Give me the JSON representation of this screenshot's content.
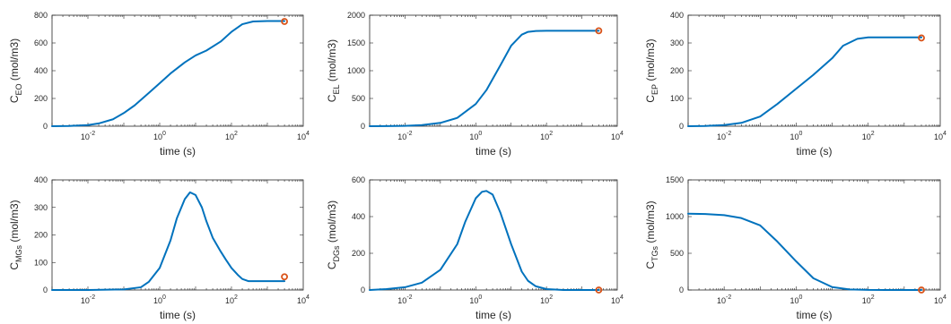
{
  "figure": {
    "line_color": "#0072BD",
    "marker_color": "#D95319"
  },
  "chart_data": [
    {
      "type": "line",
      "xlabel": "time (s)",
      "ylabel": {
        "main": "C",
        "sub": "EO",
        "unit": " (mol/m3)"
      },
      "xscale": "log",
      "xlim": [
        0.001,
        10000
      ],
      "ylim": [
        0,
        800
      ],
      "xticks": [
        0.01,
        1,
        100,
        10000
      ],
      "xtick_labels": [
        {
          "base": "10",
          "exp": "-2"
        },
        {
          "base": "10",
          "exp": "0"
        },
        {
          "base": "10",
          "exp": "2"
        },
        {
          "base": "10",
          "exp": "4"
        }
      ],
      "yticks": [
        0,
        200,
        400,
        600,
        800
      ],
      "ytick_labels": [
        "0",
        "200",
        "400",
        "600",
        "800"
      ],
      "series": [
        {
          "x": [
            0.001,
            0.003,
            0.01,
            0.02,
            0.05,
            0.1,
            0.2,
            0.5,
            1,
            2,
            5,
            10,
            20,
            50,
            100,
            200,
            400,
            1000,
            3000
          ],
          "y": [
            0,
            2,
            8,
            20,
            50,
            95,
            150,
            240,
            310,
            380,
            460,
            510,
            545,
            610,
            680,
            735,
            755,
            758,
            758
          ]
        }
      ],
      "marker": {
        "x": 3000,
        "y": 755
      }
    },
    {
      "type": "line",
      "xlabel": "time (s)",
      "ylabel": {
        "main": "C",
        "sub": "EL",
        "unit": " (mol/m3)"
      },
      "xscale": "log",
      "xlim": [
        0.001,
        10000
      ],
      "ylim": [
        0,
        2000
      ],
      "xticks": [
        0.01,
        1,
        100,
        10000
      ],
      "xtick_labels": [
        {
          "base": "10",
          "exp": "-2"
        },
        {
          "base": "10",
          "exp": "0"
        },
        {
          "base": "10",
          "exp": "2"
        },
        {
          "base": "10",
          "exp": "4"
        }
      ],
      "yticks": [
        0,
        500,
        1000,
        1500,
        2000
      ],
      "ytick_labels": [
        "0",
        "500",
        "1000",
        "1500",
        "2000"
      ],
      "series": [
        {
          "x": [
            0.001,
            0.003,
            0.01,
            0.03,
            0.1,
            0.3,
            1,
            2,
            5,
            10,
            20,
            30,
            50,
            100,
            300,
            1000,
            3000
          ],
          "y": [
            0,
            2,
            6,
            20,
            60,
            150,
            400,
            650,
            1100,
            1450,
            1650,
            1700,
            1715,
            1720,
            1720,
            1720,
            1720
          ]
        }
      ],
      "marker": {
        "x": 3000,
        "y": 1720
      }
    },
    {
      "type": "line",
      "xlabel": "time (s)",
      "ylabel": {
        "main": "C",
        "sub": "EP",
        "unit": " (mol/m3)"
      },
      "xscale": "log",
      "xlim": [
        0.001,
        10000
      ],
      "ylim": [
        0,
        400
      ],
      "xticks": [
        0.01,
        1,
        100,
        10000
      ],
      "xtick_labels": [
        {
          "base": "10",
          "exp": "-2"
        },
        {
          "base": "10",
          "exp": "0"
        },
        {
          "base": "10",
          "exp": "2"
        },
        {
          "base": "10",
          "exp": "4"
        }
      ],
      "yticks": [
        0,
        100,
        200,
        300,
        400
      ],
      "ytick_labels": [
        "0",
        "100",
        "200",
        "300",
        "400"
      ],
      "series": [
        {
          "x": [
            0.001,
            0.003,
            0.01,
            0.03,
            0.1,
            0.3,
            1,
            3,
            10,
            20,
            50,
            100,
            300,
            1000,
            3000
          ],
          "y": [
            0,
            1,
            4,
            12,
            35,
            80,
            135,
            185,
            245,
            290,
            315,
            320,
            320,
            320,
            320
          ]
        }
      ],
      "marker": {
        "x": 3000,
        "y": 318
      }
    },
    {
      "type": "line",
      "xlabel": "time (s)",
      "ylabel": {
        "main": "C",
        "sub": "MGs",
        "unit": " (mol/m3)"
      },
      "xscale": "log",
      "xlim": [
        0.001,
        10000
      ],
      "ylim": [
        0,
        400
      ],
      "xticks": [
        0.01,
        1,
        100,
        10000
      ],
      "xtick_labels": [
        {
          "base": "10",
          "exp": "-2"
        },
        {
          "base": "10",
          "exp": "0"
        },
        {
          "base": "10",
          "exp": "2"
        },
        {
          "base": "10",
          "exp": "4"
        }
      ],
      "yticks": [
        0,
        100,
        200,
        300,
        400
      ],
      "ytick_labels": [
        "0",
        "100",
        "200",
        "300",
        "400"
      ],
      "series": [
        {
          "x": [
            0.001,
            0.01,
            0.1,
            0.3,
            0.5,
            1,
            2,
            3,
            5,
            7,
            10,
            15,
            20,
            30,
            50,
            70,
            100,
            150,
            200,
            300,
            1000,
            3000
          ],
          "y": [
            0,
            0,
            2,
            10,
            30,
            80,
            180,
            260,
            330,
            355,
            345,
            300,
            250,
            190,
            140,
            110,
            80,
            55,
            40,
            32,
            32,
            32
          ]
        }
      ],
      "marker": {
        "x": 3000,
        "y": 48
      }
    },
    {
      "type": "line",
      "xlabel": "",
      "ylabel": {
        "main": "C",
        "sub": "DGs",
        "unit": " (mol/m3)"
      },
      "xscale": "log",
      "xlim": [
        0.001,
        10000
      ],
      "ylim": [
        0,
        600
      ],
      "xticks": [
        0.01,
        1,
        100,
        10000
      ],
      "xtick_labels": [
        {
          "base": "10",
          "exp": "-2"
        },
        {
          "base": "10",
          "exp": "0"
        },
        {
          "base": "10",
          "exp": "2"
        },
        {
          "base": "10",
          "exp": "4"
        }
      ],
      "yticks": [
        0,
        200,
        400,
        600
      ],
      "ytick_labels": [
        "0",
        "200",
        "400",
        "600"
      ],
      "series": [
        {
          "x": [
            0.001,
            0.003,
            0.01,
            0.03,
            0.1,
            0.3,
            0.5,
            1,
            1.5,
            2,
            3,
            5,
            10,
            20,
            30,
            50,
            100,
            300,
            1000,
            3000
          ],
          "y": [
            0,
            5,
            15,
            40,
            110,
            250,
            370,
            500,
            535,
            540,
            520,
            420,
            250,
            100,
            50,
            20,
            5,
            0,
            0,
            0
          ]
        }
      ],
      "marker": {
        "x": 3000,
        "y": 0
      }
    },
    {
      "type": "line",
      "xlabel": "time (s)",
      "ylabel": {
        "main": "C",
        "sub": "TGs",
        "unit": " (mol/m3)"
      },
      "xscale": "log",
      "xlim": [
        0.001,
        10000
      ],
      "ylim": [
        0,
        1500
      ],
      "xticks": [
        0.01,
        1,
        100,
        10000
      ],
      "xtick_labels": [
        {
          "base": "10",
          "exp": "-2"
        },
        {
          "base": "10",
          "exp": "0"
        },
        {
          "base": "10",
          "exp": "2"
        },
        {
          "base": "10",
          "exp": "4"
        }
      ],
      "yticks": [
        0,
        500,
        1000,
        1500
      ],
      "ytick_labels": [
        "0",
        "500",
        "1000",
        "1500"
      ],
      "series": [
        {
          "x": [
            0.001,
            0.003,
            0.01,
            0.03,
            0.1,
            0.3,
            1,
            3,
            10,
            30,
            100,
            300,
            1000,
            3000
          ],
          "y": [
            1040,
            1035,
            1020,
            980,
            880,
            660,
            390,
            160,
            40,
            8,
            1,
            0,
            0,
            0
          ]
        }
      ],
      "marker": {
        "x": 3000,
        "y": 0
      }
    }
  ]
}
